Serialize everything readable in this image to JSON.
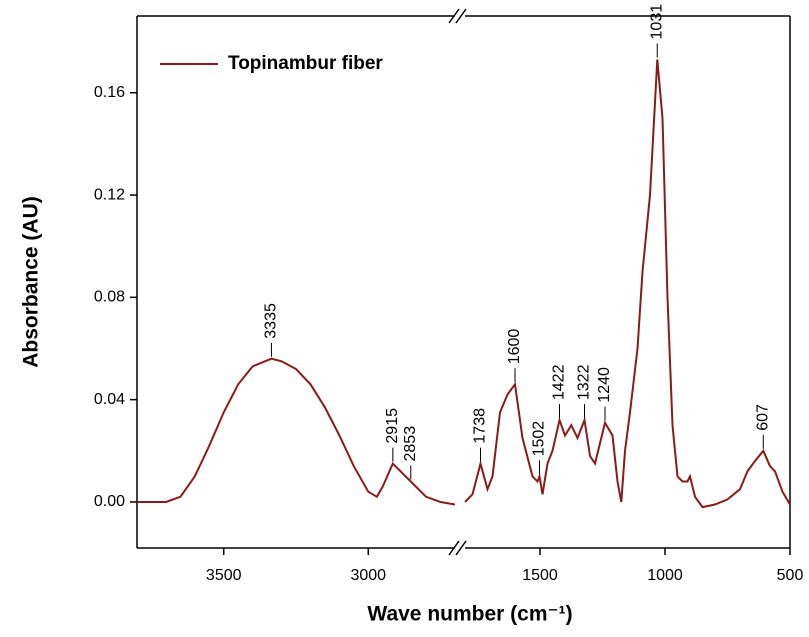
{
  "chart_data": {
    "type": "line",
    "y_label": "Absorbance (AU)",
    "x_label": "Wave number (cm⁻¹)",
    "ylim": [
      -0.018,
      0.19
    ],
    "yticks": [
      {
        "value": 0,
        "label": "0.00"
      },
      0.04,
      0.08,
      0.12,
      0.16
    ],
    "x_segments": [
      {
        "xlim": [
          3800,
          2700
        ],
        "xticks": [
          3500,
          3000
        ]
      },
      {
        "xlim": [
          1800,
          500
        ],
        "xticks": [
          1500,
          1000,
          500
        ]
      }
    ],
    "legend_position": "upper left",
    "series": [
      {
        "name": "Topinambur fiber",
        "color": "#8b1a1a",
        "x": [
          3800,
          3700,
          3650,
          3600,
          3550,
          3500,
          3450,
          3400,
          3335,
          3300,
          3250,
          3200,
          3150,
          3100,
          3050,
          3000,
          2970,
          2950,
          2915,
          2880,
          2853,
          2800,
          2750,
          2700,
          1800,
          1770,
          1738,
          1710,
          1690,
          1660,
          1630,
          1600,
          1570,
          1530,
          1510,
          1502,
          1490,
          1470,
          1450,
          1422,
          1400,
          1375,
          1350,
          1322,
          1300,
          1280,
          1240,
          1210,
          1190,
          1175,
          1160,
          1140,
          1110,
          1090,
          1060,
          1031,
          1010,
          990,
          970,
          950,
          930,
          910,
          900,
          880,
          850,
          800,
          750,
          700,
          670,
          640,
          607,
          580,
          560,
          530,
          500
        ],
        "values": [
          0.0,
          0.0,
          0.002,
          0.01,
          0.022,
          0.035,
          0.046,
          0.053,
          0.056,
          0.055,
          0.052,
          0.046,
          0.037,
          0.026,
          0.014,
          0.004,
          0.002,
          0.006,
          0.015,
          0.011,
          0.008,
          0.002,
          0.0,
          -0.001,
          0.0,
          0.003,
          0.015,
          0.005,
          0.01,
          0.035,
          0.042,
          0.046,
          0.025,
          0.01,
          0.008,
          0.01,
          0.003,
          0.015,
          0.02,
          0.032,
          0.026,
          0.03,
          0.025,
          0.032,
          0.018,
          0.015,
          0.031,
          0.026,
          0.008,
          0.0,
          0.02,
          0.035,
          0.06,
          0.09,
          0.12,
          0.173,
          0.15,
          0.08,
          0.03,
          0.01,
          0.008,
          0.008,
          0.01,
          0.002,
          -0.002,
          -0.001,
          0.001,
          0.005,
          0.012,
          0.016,
          0.02,
          0.014,
          0.012,
          0.004,
          -0.001
        ]
      }
    ],
    "peaks": [
      3335,
      2915,
      2853,
      1738,
      1600,
      1502,
      1422,
      1322,
      1240,
      1031,
      607
    ]
  }
}
